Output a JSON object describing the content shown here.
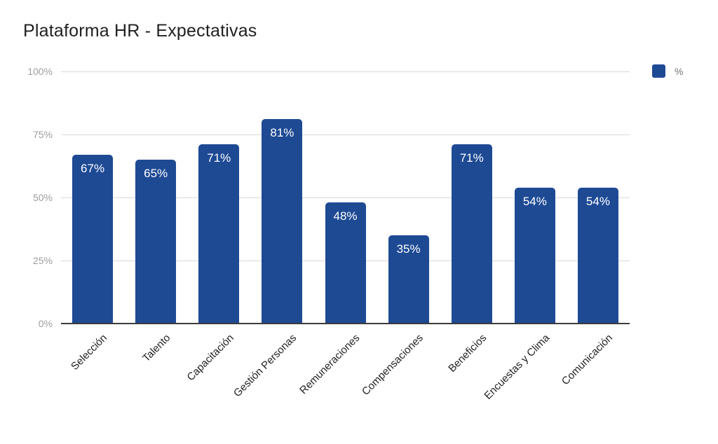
{
  "title": "Plataforma HR - Expectativas",
  "legend": {
    "label": "%",
    "swatch_color": "#1e4a94"
  },
  "chart_data": {
    "type": "bar",
    "title": "Plataforma HR - Expectativas",
    "categories": [
      "Selección",
      "Talento",
      "Capacitación",
      "Gestión Personas",
      "Remuneraciones",
      "Compensaciones",
      "Beneficios",
      "Encuestas y Clima",
      "Comunicación"
    ],
    "series": [
      {
        "name": "%",
        "values": [
          67,
          65,
          71,
          81,
          48,
          35,
          71,
          54,
          54
        ]
      }
    ],
    "value_labels": [
      "67%",
      "65%",
      "71%",
      "81%",
      "48%",
      "35%",
      "71%",
      "54%",
      "54%"
    ],
    "xlabel": "",
    "ylabel": "",
    "ylim": [
      0,
      100
    ],
    "yticks": [
      {
        "value": 0,
        "label": "0%"
      },
      {
        "value": 25,
        "label": "25%"
      },
      {
        "value": 50,
        "label": "50%"
      },
      {
        "value": 75,
        "label": "75%"
      },
      {
        "value": 100,
        "label": "100%"
      }
    ],
    "grid": true,
    "legend_position": "top-right",
    "bar_color": "#1e4a94",
    "value_label_color": "#ffffff"
  }
}
